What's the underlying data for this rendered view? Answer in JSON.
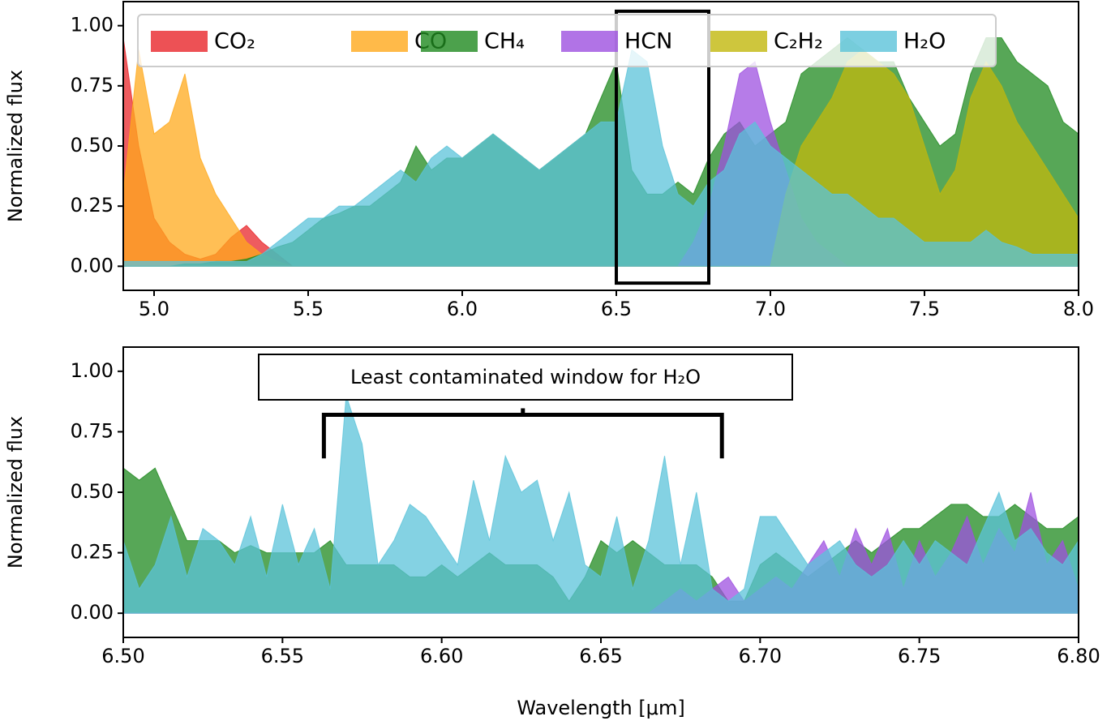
{
  "chart_data": [
    {
      "type": "area",
      "ylabel": "Normalized flux",
      "x": [
        4.9,
        4.95,
        5,
        5.05,
        5.1,
        5.15,
        5.2,
        5.25,
        5.3,
        5.35,
        5.4,
        5.45,
        5.5,
        5.55,
        5.6,
        5.65,
        5.7,
        5.75,
        5.8,
        5.85,
        5.9,
        5.95,
        6,
        6.05,
        6.1,
        6.15,
        6.2,
        6.25,
        6.3,
        6.35,
        6.4,
        6.45,
        6.5,
        6.55,
        6.6,
        6.65,
        6.7,
        6.75,
        6.8,
        6.85,
        6.9,
        6.95,
        7,
        7.05,
        7.1,
        7.15,
        7.2,
        7.25,
        7.3,
        7.35,
        7.4,
        7.45,
        7.5,
        7.55,
        7.6,
        7.65,
        7.7,
        7.75,
        7.8,
        7.85,
        7.9,
        7.95,
        8
      ],
      "series": [
        {
          "name": "CO₂",
          "color": "#e8262a",
          "values": [
            0.95,
            0.5,
            0.2,
            0.1,
            0.05,
            0.03,
            0.05,
            0.12,
            0.17,
            0.1,
            0.05,
            0,
            0,
            0,
            0,
            0,
            0,
            0,
            0,
            0,
            0,
            0,
            0,
            0,
            0,
            0,
            0,
            0,
            0,
            0,
            0,
            0,
            0,
            0,
            0,
            0,
            0,
            0,
            0,
            0,
            0,
            0,
            0,
            0,
            0,
            0,
            0,
            0,
            0,
            0,
            0,
            0,
            0,
            0,
            0,
            0,
            0,
            0,
            0,
            0,
            0,
            0,
            0
          ]
        },
        {
          "name": "CO",
          "color": "#ffa91c",
          "values": [
            0.3,
            0.9,
            0.55,
            0.6,
            0.8,
            0.45,
            0.3,
            0.2,
            0.1,
            0.05,
            0.02,
            0,
            0,
            0,
            0,
            0,
            0,
            0,
            0,
            0,
            0,
            0,
            0,
            0,
            0,
            0,
            0,
            0,
            0,
            0,
            0,
            0,
            0,
            0,
            0,
            0,
            0,
            0,
            0,
            0,
            0,
            0,
            0,
            0,
            0,
            0,
            0,
            0,
            0,
            0,
            0,
            0,
            0,
            0,
            0,
            0,
            0,
            0,
            0,
            0,
            0,
            0,
            0
          ]
        },
        {
          "name": "CH₄",
          "color": "#1f8a1f",
          "values": [
            0,
            0,
            0,
            0,
            0.01,
            0.01,
            0.02,
            0.02,
            0.03,
            0.05,
            0.08,
            0.1,
            0.15,
            0.2,
            0.22,
            0.25,
            0.25,
            0.3,
            0.35,
            0.5,
            0.4,
            0.45,
            0.45,
            0.5,
            0.55,
            0.5,
            0.45,
            0.4,
            0.45,
            0.5,
            0.55,
            0.7,
            0.85,
            0.4,
            0.3,
            0.3,
            0.35,
            0.3,
            0.45,
            0.55,
            0.6,
            0.5,
            0.55,
            0.6,
            0.8,
            0.85,
            0.9,
            0.95,
            0.9,
            0.85,
            0.85,
            0.7,
            0.6,
            0.5,
            0.55,
            0.8,
            0.95,
            0.95,
            0.85,
            0.8,
            0.75,
            0.6,
            0.55
          ]
        },
        {
          "name": "HCN",
          "color": "#9d50e0",
          "values": [
            0,
            0,
            0,
            0,
            0,
            0,
            0,
            0,
            0,
            0,
            0,
            0,
            0,
            0,
            0,
            0,
            0,
            0,
            0,
            0,
            0,
            0,
            0,
            0,
            0,
            0,
            0,
            0,
            0,
            0,
            0,
            0,
            0,
            0,
            0,
            0,
            0,
            0.1,
            0.25,
            0.5,
            0.8,
            0.85,
            0.6,
            0.4,
            0.2,
            0.1,
            0.05,
            0,
            0,
            0,
            0,
            0,
            0,
            0,
            0,
            0,
            0,
            0,
            0,
            0,
            0,
            0,
            0
          ]
        },
        {
          "name": "C₂H₂",
          "color": "#c2b80c",
          "values": [
            0,
            0,
            0,
            0,
            0,
            0,
            0,
            0,
            0,
            0,
            0,
            0,
            0,
            0,
            0,
            0,
            0,
            0,
            0,
            0,
            0,
            0,
            0,
            0,
            0,
            0,
            0,
            0,
            0,
            0,
            0,
            0,
            0,
            0,
            0,
            0,
            0,
            0,
            0,
            0,
            0,
            0,
            0,
            0.3,
            0.5,
            0.6,
            0.7,
            0.85,
            0.9,
            0.85,
            0.8,
            0.7,
            0.5,
            0.3,
            0.4,
            0.7,
            0.85,
            0.75,
            0.6,
            0.5,
            0.4,
            0.3,
            0.2
          ]
        },
        {
          "name": "H₂O",
          "color": "#5bc3d9",
          "values": [
            0.02,
            0.02,
            0.02,
            0.02,
            0.02,
            0.02,
            0.02,
            0.02,
            0.02,
            0.05,
            0.1,
            0.15,
            0.2,
            0.2,
            0.25,
            0.25,
            0.3,
            0.35,
            0.4,
            0.35,
            0.45,
            0.5,
            0.45,
            0.5,
            0.55,
            0.5,
            0.45,
            0.4,
            0.45,
            0.5,
            0.55,
            0.6,
            0.6,
            0.9,
            0.85,
            0.5,
            0.3,
            0.25,
            0.35,
            0.4,
            0.55,
            0.6,
            0.5,
            0.45,
            0.4,
            0.35,
            0.3,
            0.3,
            0.25,
            0.2,
            0.2,
            0.15,
            0.1,
            0.1,
            0.1,
            0.1,
            0.15,
            0.1,
            0.08,
            0.05,
            0.05,
            0.05,
            0.05
          ]
        }
      ],
      "xlim": [
        4.9,
        8.0
      ],
      "ylim": [
        -0.1,
        1.1
      ],
      "xticks": [
        {
          "value": 5,
          "label": "5.0"
        },
        5.5,
        {
          "value": 6,
          "label": "6.0"
        },
        6.5,
        {
          "value": 7,
          "label": "7.0"
        },
        7.5,
        {
          "value": 8,
          "label": "8.0"
        }
      ],
      "yticks": [
        {
          "value": 0,
          "label": "0.00"
        },
        0.25,
        {
          "value": 0.5,
          "label": "0.50"
        },
        0.75,
        {
          "value": 1,
          "label": "1.00"
        }
      ],
      "legend": "top",
      "highlight": {
        "x": [
          6.5,
          6.8
        ],
        "y": [
          -0.07,
          1.06
        ]
      }
    },
    {
      "type": "area",
      "ylabel": "Normalized flux",
      "xlabel": "Wavelength [μm]",
      "x": [
        6.5,
        6.505,
        6.51,
        6.515,
        6.52,
        6.525,
        6.53,
        6.535,
        6.54,
        6.545,
        6.55,
        6.555,
        6.56,
        6.565,
        6.57,
        6.575,
        6.58,
        6.585,
        6.59,
        6.595,
        6.6,
        6.605,
        6.61,
        6.615,
        6.62,
        6.625,
        6.63,
        6.635,
        6.64,
        6.645,
        6.65,
        6.655,
        6.66,
        6.665,
        6.67,
        6.675,
        6.68,
        6.685,
        6.69,
        6.695,
        6.7,
        6.705,
        6.71,
        6.715,
        6.72,
        6.725,
        6.73,
        6.735,
        6.74,
        6.745,
        6.75,
        6.755,
        6.76,
        6.765,
        6.77,
        6.775,
        6.78,
        6.785,
        6.79,
        6.795,
        6.8
      ],
      "series": [
        {
          "color": "#1f8a1f",
          "values": [
            0.6,
            0.55,
            0.6,
            0.45,
            0.3,
            0.3,
            0.3,
            0.25,
            0.28,
            0.25,
            0.25,
            0.25,
            0.25,
            0.3,
            0.2,
            0.2,
            0.2,
            0.2,
            0.15,
            0.15,
            0.2,
            0.15,
            0.2,
            0.25,
            0.2,
            0.2,
            0.2,
            0.15,
            0.05,
            0.15,
            0.3,
            0.25,
            0.3,
            0.25,
            0.2,
            0.2,
            0.2,
            0.15,
            0.05,
            0.05,
            0.2,
            0.25,
            0.2,
            0.15,
            0.2,
            0.25,
            0.3,
            0.25,
            0.3,
            0.35,
            0.35,
            0.4,
            0.45,
            0.45,
            0.4,
            0.4,
            0.45,
            0.4,
            0.35,
            0.35,
            0.4
          ]
        },
        {
          "color": "#9d50e0",
          "values": [
            0,
            0,
            0,
            0,
            0,
            0,
            0,
            0,
            0,
            0,
            0,
            0,
            0,
            0,
            0,
            0,
            0,
            0,
            0,
            0,
            0,
            0,
            0,
            0,
            0,
            0,
            0,
            0,
            0,
            0,
            0,
            0,
            0,
            0,
            0.05,
            0.1,
            0.05,
            0.1,
            0.15,
            0.05,
            0.1,
            0.15,
            0.1,
            0.2,
            0.3,
            0.15,
            0.35,
            0.2,
            0.35,
            0.1,
            0.3,
            0.15,
            0.25,
            0.4,
            0.2,
            0.35,
            0.25,
            0.5,
            0.2,
            0.3,
            0.1
          ]
        },
        {
          "color": "#5bc3d9",
          "values": [
            0.3,
            0.1,
            0.2,
            0.4,
            0.15,
            0.35,
            0.3,
            0.2,
            0.4,
            0.15,
            0.45,
            0.2,
            0.35,
            0.1,
            0.9,
            0.7,
            0.2,
            0.3,
            0.45,
            0.4,
            0.3,
            0.2,
            0.55,
            0.3,
            0.65,
            0.5,
            0.55,
            0.3,
            0.5,
            0.2,
            0.15,
            0.4,
            0.1,
            0.3,
            0.65,
            0.2,
            0.5,
            0.1,
            0.05,
            0.1,
            0.4,
            0.4,
            0.3,
            0.2,
            0.25,
            0.3,
            0.2,
            0.15,
            0.2,
            0.3,
            0.2,
            0.3,
            0.25,
            0.2,
            0.35,
            0.5,
            0.3,
            0.35,
            0.25,
            0.2,
            0.3
          ]
        }
      ],
      "xlim": [
        6.5,
        6.8
      ],
      "ylim": [
        -0.1,
        1.1
      ],
      "xticks": [
        {
          "value": 6.5,
          "label": "6.50"
        },
        6.55,
        {
          "value": 6.6,
          "label": "6.60"
        },
        6.65,
        {
          "value": 6.7,
          "label": "6.70"
        },
        6.75,
        {
          "value": 6.8,
          "label": "6.80"
        }
      ],
      "yticks": [
        {
          "value": 0,
          "label": "0.00"
        },
        0.25,
        {
          "value": 0.5,
          "label": "0.50"
        },
        0.75,
        {
          "value": 1,
          "label": "1.00"
        }
      ],
      "annotation": {
        "text": "Least contaminated window for H₂O",
        "bracket": [
          6.563,
          6.688
        ]
      }
    }
  ]
}
